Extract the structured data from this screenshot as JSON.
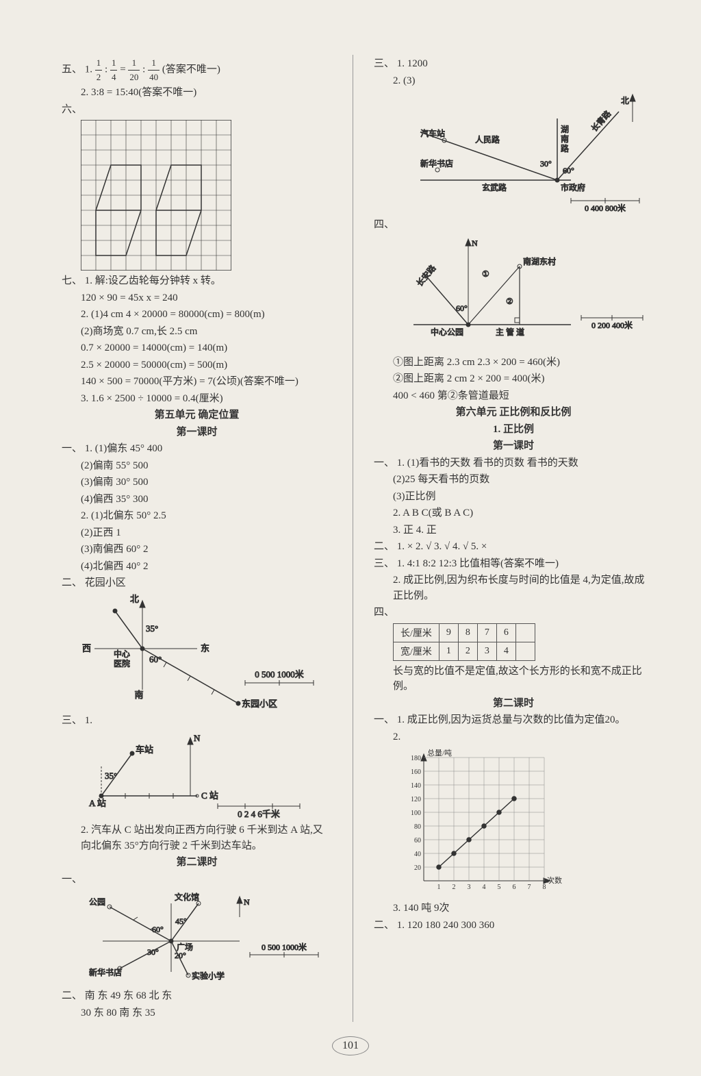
{
  "left": {
    "five": {
      "label": "五、",
      "item1a": "1. ",
      "item1b": " : ",
      "item1c": " = ",
      "item1d": " : ",
      "item1e": "(答案不唯一)",
      "frac1": {
        "n": "1",
        "d": "2"
      },
      "frac2": {
        "n": "1",
        "d": "4"
      },
      "frac3": {
        "n": "1",
        "d": "20"
      },
      "frac4": {
        "n": "1",
        "d": "40"
      },
      "item2": "2. 3:8 = 15:40(答案不唯一)"
    },
    "six": {
      "label": "六、"
    },
    "seven": {
      "label": "七、",
      "l1": "1. 解:设乙齿轮每分钟转 x 转。",
      "l2": "120 × 90 = 45x    x = 240",
      "l3": "2. (1)4 cm   4 × 20000 = 80000(cm) = 800(m)",
      "l4": "(2)商场宽 0.7 cm,长 2.5 cm",
      "l5": "0.7 × 20000 = 14000(cm) = 140(m)",
      "l6": "2.5 × 20000 = 50000(cm) = 500(m)",
      "l7": "140 × 500 = 70000(平方米) = 7(公顷)(答案不唯一)",
      "l8": "3. 1.6 × 2500 ÷ 10000 = 0.4(厘米)"
    },
    "unit5": {
      "title": "第五单元  确定位置",
      "lesson1": "第一课时"
    },
    "sec1": {
      "label": "一、",
      "l1": "1. (1)偏东 45°   400",
      "l2": "(2)偏南 55°   500",
      "l3": "(3)偏南 30°   500",
      "l4": "(4)偏西 35°   300",
      "l5": "2. (1)北偏东 50°   2.5",
      "l6": "(2)正西   1",
      "l7": "(3)南偏西 60°   2",
      "l8": "(4)北偏西 40°   2"
    },
    "sec2": {
      "label": "二、",
      "fig": {
        "huayuan": "花园小区",
        "bei": "北",
        "xi": "西",
        "dong": "东",
        "nan": "南",
        "hospital": "中心\n医院",
        "dongyuan": "东园小区",
        "a35": "35°",
        "a60": "60°",
        "scale": "0  500  1000米"
      }
    },
    "sec3": {
      "label": "三、",
      "l1": "1.",
      "fig": {
        "N": "N",
        "station": "车站",
        "A": "A 站",
        "C": "C 站",
        "a35": "35°",
        "scale": "0   2   4   6千米"
      },
      "l2": "2. 汽车从 C 站出发向正西方向行驶 6 千米到达 A 站,又向北偏东 35°方向行驶 2 千米到达车站。"
    },
    "lesson2": "第二课时",
    "sec1b": {
      "label": "一、",
      "fig": {
        "park": "公园",
        "culture": "文化馆",
        "N": "N",
        "square": "广场",
        "bookstore": "新华书店",
        "school": "实验小学",
        "a60": "60°",
        "a45": "45°",
        "a30": "30°",
        "a20": "20°",
        "scale": "0  500  1000米"
      }
    },
    "sec2b": {
      "label": "二、",
      "text": "南  东  49  东  68  北  东",
      "text2": "30  东  80  南  东  35"
    }
  },
  "right": {
    "sec3": {
      "label": "三、",
      "l1": "1. 1200",
      "l2": "2. (3)",
      "fig": {
        "renmin": "人民路",
        "hunan": "湖南路",
        "xuanwu": "玄武路",
        "changqing": "长青路",
        "bus": "汽车站",
        "bookstore": "新华书店",
        "gov": "市政府",
        "bei": "北",
        "a30": "30°",
        "a60": "60°",
        "scale": "0   400   800米"
      }
    },
    "sec4": {
      "label": "四、",
      "fig": {
        "N": "N",
        "village": "南湖东村",
        "park": "中心公园",
        "pipe": "主  管  道",
        "changan": "长安路",
        "c1": "①",
        "c2": "②",
        "a60": "60°",
        "scale": "0   200   400米"
      },
      "l1": "①图上距离 2.3 cm   2.3 × 200 = 460(米)",
      "l2": "②图上距离 2 cm   2 × 200 = 400(米)",
      "l3": "400 < 460   第②条管道最短"
    },
    "unit6": {
      "title": "第六单元  正比例和反比例",
      "sub": "1. 正比例",
      "lesson1": "第一课时"
    },
    "r1": {
      "label": "一、",
      "l1": "1. (1)看书的天数  看书的页数  看书的天数",
      "l2": "(2)25  每天看书的页数",
      "l3": "(3)正比例",
      "l4": "2. A   B   C(或 B   A   C)",
      "l5": "3. 正   4. 正"
    },
    "r2": {
      "label": "二、",
      "text": "1. ×   2. √   3. √   4. √   5. ×"
    },
    "r3": {
      "label": "三、",
      "l1": "1. 4:1  8:2  12:3  比值相等(答案不唯一)",
      "l2": "2. 成正比例,因为织布长度与时间的比值是 4,为定值,故成正比例。"
    },
    "r4": {
      "label": "四、",
      "table": {
        "h1": "长/厘米",
        "h2": "宽/厘米",
        "r1": [
          "9",
          "8",
          "7",
          "6"
        ],
        "r2": [
          "1",
          "2",
          "3",
          "4"
        ]
      },
      "note": "长与宽的比值不是定值,故这个长方形的长和宽不成正比例。"
    },
    "lesson2": "第二课时",
    "r1b": {
      "label": "一、",
      "l1": "1. 成正比例,因为运货总量与次数的比值为定值20。",
      "l2": "2.",
      "chart": {
        "ylabel": "总量/吨",
        "xlabel": "次数",
        "yticks": [
          "20",
          "40",
          "60",
          "80",
          "100",
          "120",
          "140",
          "160",
          "180"
        ],
        "xticks": [
          "1",
          "2",
          "3",
          "4",
          "5",
          "6",
          "7",
          "8"
        ],
        "points": [
          [
            1,
            20
          ],
          [
            2,
            40
          ],
          [
            3,
            60
          ],
          [
            4,
            80
          ],
          [
            5,
            100
          ],
          [
            6,
            120
          ]
        ]
      },
      "l3": "3. 140 吨   9次"
    },
    "r2b": {
      "label": "二、",
      "text": "1. 120   180   240   300   360"
    }
  },
  "pageNum": "101"
}
